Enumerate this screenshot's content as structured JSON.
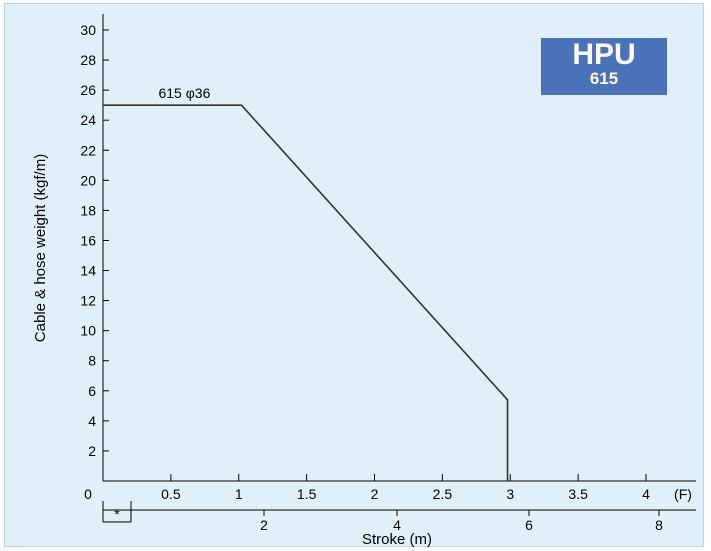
{
  "chart_data": {
    "type": "line",
    "xlabel": "Stroke (m)",
    "ylabel": "Cable & hose weight (kgf/m)",
    "xlim": [
      0,
      4.2
    ],
    "ylim": [
      0,
      31
    ],
    "x_ticks": [
      "0.5",
      "1",
      "1.5",
      "2",
      "2.5",
      "3",
      "3.5",
      "4"
    ],
    "x_unit_label": "(F)",
    "y_ticks": [
      "2",
      "4",
      "6",
      "8",
      "10",
      "12",
      "14",
      "16",
      "18",
      "20",
      "22",
      "24",
      "26",
      "28",
      "30"
    ],
    "origin_label": "0",
    "secondary_axis": {
      "ticks": [
        "2",
        "4",
        "6",
        "8"
      ],
      "note": "*"
    },
    "series": [
      {
        "name": "615 φ36",
        "x": [
          0,
          1.02,
          2.98,
          2.98
        ],
        "y": [
          25,
          25,
          5.4,
          0
        ]
      }
    ],
    "badge": {
      "title": "HPU",
      "model": "615",
      "color": "#4a72b8"
    },
    "grid": false,
    "line_color": "#333333"
  }
}
